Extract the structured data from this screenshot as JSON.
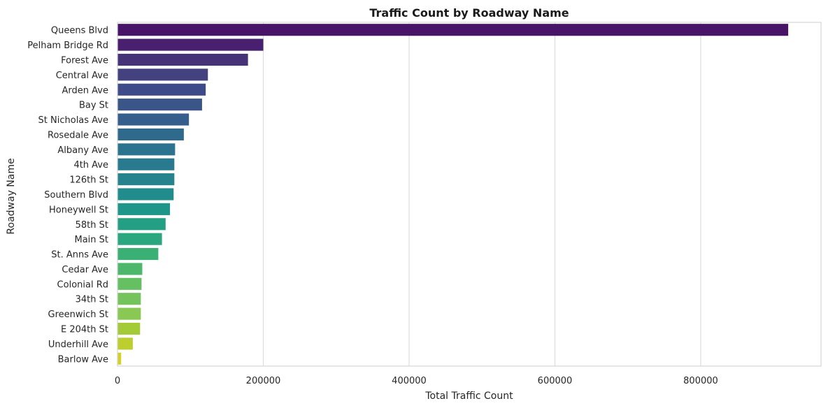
{
  "chart_data": {
    "type": "bar",
    "orientation": "horizontal",
    "title": "Traffic Count by Roadway Name",
    "xlabel": "Total Traffic Count",
    "ylabel": "Roadway Name",
    "xlim": [
      0,
      965000
    ],
    "xticks": [
      0,
      200000,
      400000,
      600000,
      800000
    ],
    "grid": "vertical",
    "palette": "viridis",
    "categories": [
      "Queens Blvd",
      "Pelham Bridge Rd",
      "Forest Ave",
      "Central Ave",
      "Arden Ave",
      "Bay St",
      "St Nicholas Ave",
      "Rosedale Ave",
      "Albany Ave",
      "4th Ave",
      "126th St",
      "Southern Blvd",
      "Honeywell St",
      "58th St",
      "Main St",
      "St. Anns Ave",
      "Cedar Ave",
      "Colonial Rd",
      "34th St",
      "Greenwich St",
      "E 204th St",
      "Underhill Ave",
      "Barlow Ave"
    ],
    "values": [
      920000,
      200000,
      179000,
      124000,
      121000,
      116000,
      98000,
      91000,
      79000,
      78000,
      78000,
      77000,
      72000,
      66000,
      61000,
      56000,
      34000,
      33000,
      32000,
      32000,
      31000,
      21000,
      5000
    ],
    "colors": [
      "#471467",
      "#48206f",
      "#463377",
      "#43417f",
      "#3f4b89",
      "#3a5689",
      "#355e8d",
      "#2f6a8d",
      "#2b738e",
      "#297a8e",
      "#25838d",
      "#218c8c",
      "#1f968a",
      "#23a083",
      "#2aa77f",
      "#3bb075",
      "#4db86c",
      "#65c062",
      "#74c35c",
      "#89c953",
      "#a3cb38",
      "#bccf2f",
      "#d3d127"
    ]
  }
}
